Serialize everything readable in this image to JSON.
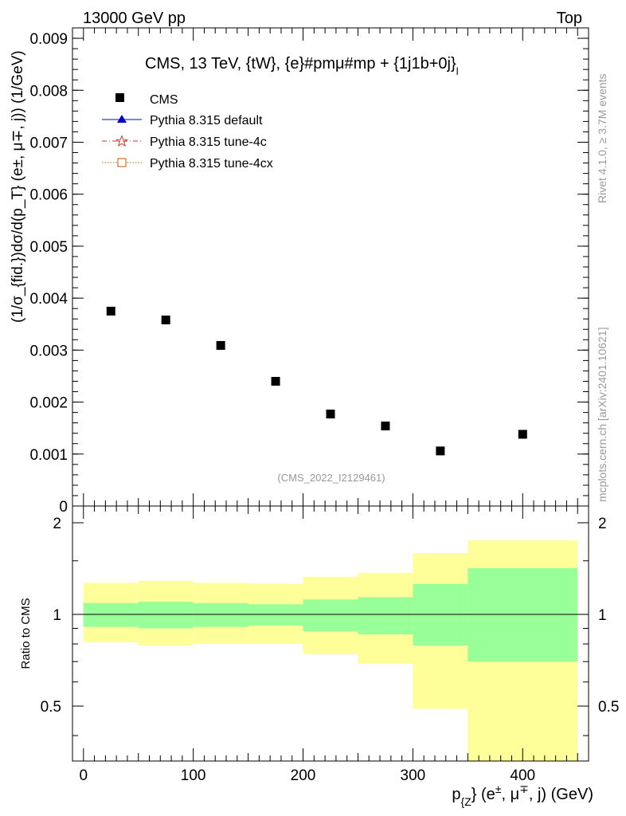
{
  "header": {
    "left": "13000 GeV pp",
    "right": "Top"
  },
  "side_labels": {
    "rivet": "Rivet 4.1.0, ≥ 3.7M events",
    "mcplots": "mcplots.cern.ch [arXiv:2401.10621]"
  },
  "chart_data": {
    "type": "scatter",
    "title": "CMS, 13 TeV, {tW}, {e}#pmμ#mp + {1j1b+0j}",
    "title_suffix": "l",
    "watermark": "(CMS_2022_I2129461)",
    "xlabel": {
      "main": "p",
      "sub": "{Z",
      "rest": "} (e",
      "sup1": "±",
      "mid": ", μ",
      "sup2": "∓",
      "end": ", j) (GeV)"
    },
    "ylabel": "(1/σ_{fid.})dσ/d(p_T} (e±, μ∓, j)) (1/GeV)",
    "xlim": [
      -10,
      460
    ],
    "ylim": [
      0,
      0.0092
    ],
    "yticks": [
      "0",
      "0.001",
      "0.002",
      "0.003",
      "0.004",
      "0.005",
      "0.006",
      "0.007",
      "0.008",
      "0.009"
    ],
    "ytick_values": [
      0,
      0.001,
      0.002,
      0.003,
      0.004,
      0.005,
      0.006,
      0.007,
      0.008,
      0.009
    ],
    "xticks": [
      "0",
      "100",
      "200",
      "300",
      "400"
    ],
    "xtick_values": [
      0,
      100,
      200,
      300,
      400
    ],
    "bins": [
      [
        0,
        50
      ],
      [
        50,
        100
      ],
      [
        100,
        150
      ],
      [
        150,
        200
      ],
      [
        200,
        250
      ],
      [
        250,
        300
      ],
      [
        300,
        350
      ],
      [
        350,
        450
      ]
    ],
    "series": [
      {
        "name": "CMS",
        "x": [
          25,
          75,
          125,
          175,
          225,
          275,
          325,
          400
        ],
        "values": [
          0.00375,
          0.00358,
          0.00309,
          0.0024,
          0.00177,
          0.00154,
          0.00106,
          0.00138
        ]
      }
    ],
    "legend": [
      "CMS",
      "Pythia 8.315 default",
      "Pythia 8.315 tune-4c",
      "Pythia 8.315 tune-4cx"
    ],
    "legend_colors": [
      "#000000",
      "#0000cc",
      "#dd3333",
      "#cc5500"
    ],
    "ratio": {
      "ylabel": "Ratio to CMS",
      "ylim": [
        0.33,
        2.27
      ],
      "yticks": [
        "0.5",
        "1",
        "2"
      ],
      "ytick_values": [
        0.5,
        1,
        2
      ],
      "stat_band": [
        [
          0.91,
          1.09
        ],
        [
          0.9,
          1.1
        ],
        [
          0.91,
          1.09
        ],
        [
          0.92,
          1.08
        ],
        [
          0.88,
          1.12
        ],
        [
          0.86,
          1.14
        ],
        [
          0.79,
          1.26
        ],
        [
          0.7,
          1.42
        ]
      ],
      "total_band": [
        [
          0.81,
          1.27
        ],
        [
          0.79,
          1.29
        ],
        [
          0.8,
          1.27
        ],
        [
          0.8,
          1.26
        ],
        [
          0.74,
          1.33
        ],
        [
          0.69,
          1.37
        ],
        [
          0.49,
          1.59
        ],
        [
          0.33,
          1.75
        ]
      ],
      "stat_color": "#99ff99",
      "total_color": "#ffff99"
    }
  }
}
